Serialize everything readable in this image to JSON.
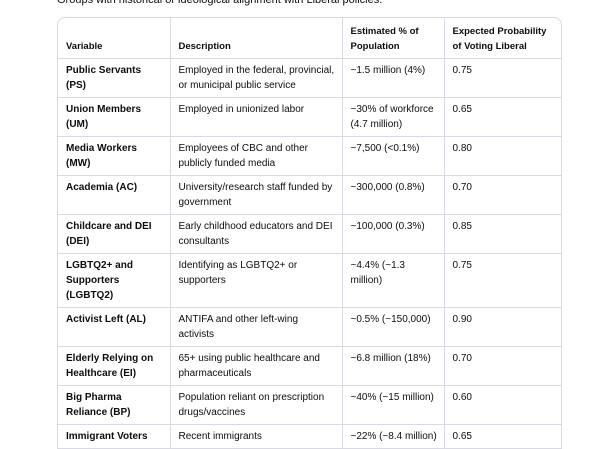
{
  "intro": "Groups with historical or ideological alignment with Liberal policies.",
  "table": {
    "headers": [
      "Variable",
      "Description",
      "Estimated % of Population",
      "Expected Probability of Voting Liberal"
    ],
    "rows": [
      [
        "Public Servants (PS)",
        "Employed in the federal, provincial, or municipal public service",
        "~1.5 million (4%)",
        "0.75"
      ],
      [
        "Union Members (UM)",
        "Employed in unionized labor",
        "~30% of workforce (4.7 million)",
        "0.65"
      ],
      [
        "Media Workers (MW)",
        "Employees of CBC and other publicly funded media",
        "~7,500 (<0.1%)",
        "0.80"
      ],
      [
        "Academia (AC)",
        "University/research staff funded by government",
        "~300,000 (0.8%)",
        "0.70"
      ],
      [
        "Childcare and DEI (DEI)",
        "Early childhood educators and DEI consultants",
        "~100,000 (0.3%)",
        "0.85"
      ],
      [
        "LGBTQ2+ and Supporters (LGBTQ2)",
        "Identifying as LGBTQ2+ or supporters",
        "~4.4% (~1.3 million)",
        "0.75"
      ],
      [
        "Activist Left (AL)",
        "ANTIFA and other left-wing activists",
        "~0.5% (~150,000)",
        "0.90"
      ],
      [
        "Elderly Relying on Healthcare (EI)",
        "65+ using public healthcare and pharmaceuticals",
        "~6.8 million (18%)",
        "0.70"
      ],
      [
        "Big Pharma Reliance (BP)",
        "Population reliant on prescription drugs/vaccines",
        "~40% (~15 million)",
        "0.60"
      ],
      [
        "Immigrant Voters",
        "Recent immigrants",
        "~22% (~8.4 million)",
        "0.65"
      ]
    ]
  }
}
